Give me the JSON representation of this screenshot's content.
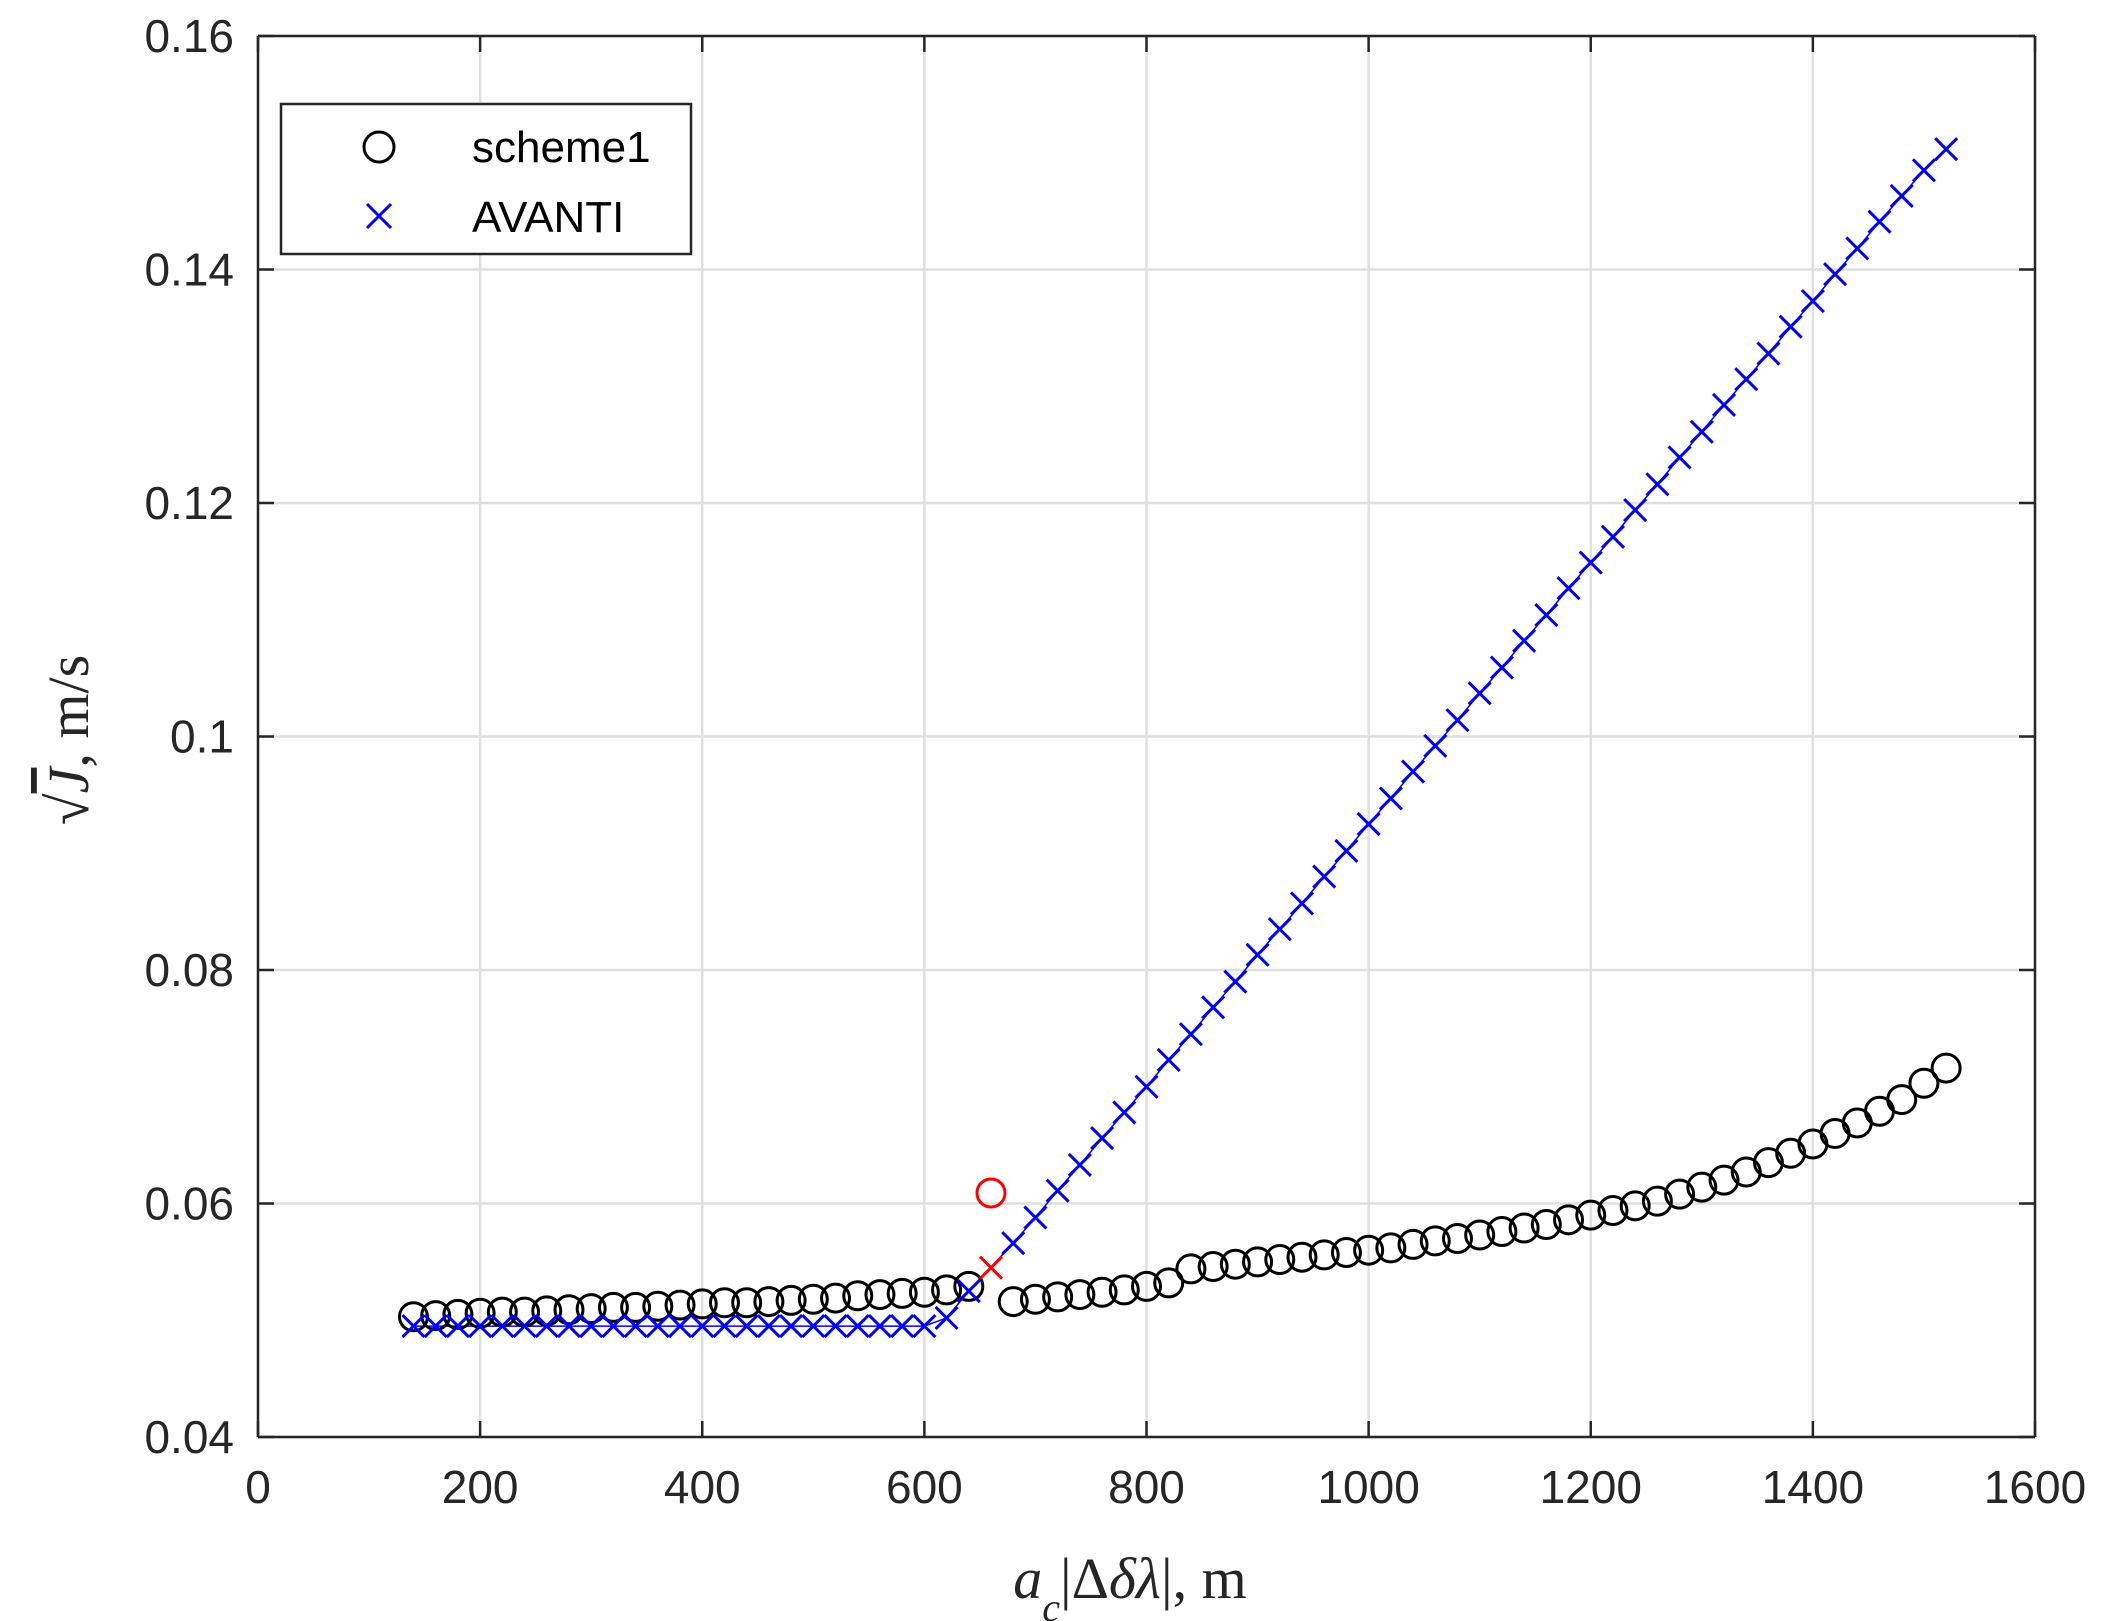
{
  "chart_data": {
    "type": "scatter",
    "title": "",
    "xlabel": "a_c|Δδλ|, m",
    "ylabel": "√J, m/s",
    "xlim": [
      0,
      1600
    ],
    "ylim": [
      0.04,
      0.16
    ],
    "grid": true,
    "legend_position": "top-left",
    "x_ticks": [
      0,
      200,
      400,
      600,
      800,
      1000,
      1200,
      1400,
      1600
    ],
    "x_tick_labels": [
      "0",
      "200",
      "400",
      "600",
      "800",
      "1000",
      "1200",
      "1400",
      "1600"
    ],
    "y_ticks": [
      0.04,
      0.06,
      0.08,
      0.1,
      0.12,
      0.14,
      0.16
    ],
    "y_tick_labels": [
      "0.04",
      "0.06",
      "0.08",
      "0.1",
      "0.12",
      "0.14",
      "0.16"
    ],
    "colors": {
      "scheme1": "#000000",
      "avanti": "#0000ff",
      "highlight": "#ff0000"
    },
    "series": [
      {
        "name": "scheme1",
        "marker": "circle",
        "color": "#000000",
        "x": [
          140,
          160,
          180,
          200,
          220,
          240,
          260,
          280,
          300,
          320,
          340,
          360,
          380,
          400,
          420,
          440,
          460,
          480,
          500,
          520,
          540,
          560,
          580,
          600,
          620,
          640,
          680,
          700,
          720,
          740,
          760,
          780,
          800,
          820,
          840,
          860,
          880,
          900,
          920,
          940,
          960,
          980,
          1000,
          1020,
          1040,
          1060,
          1080,
          1100,
          1120,
          1140,
          1160,
          1180,
          1200,
          1220,
          1240,
          1260,
          1280,
          1300,
          1320,
          1340,
          1360,
          1380,
          1400,
          1420,
          1440,
          1460,
          1480,
          1500,
          1520
        ],
        "y": [
          0.0503,
          0.0504,
          0.0505,
          0.0506,
          0.0507,
          0.0507,
          0.0508,
          0.0509,
          0.051,
          0.0511,
          0.0511,
          0.0512,
          0.0513,
          0.0514,
          0.0515,
          0.0515,
          0.0516,
          0.0517,
          0.0518,
          0.0519,
          0.0521,
          0.0522,
          0.0523,
          0.0524,
          0.0526,
          0.0529,
          0.0516,
          0.0518,
          0.052,
          0.0522,
          0.0524,
          0.0526,
          0.0529,
          0.0532,
          0.0544,
          0.0546,
          0.0548,
          0.055,
          0.0552,
          0.0554,
          0.0556,
          0.0558,
          0.056,
          0.0562,
          0.0565,
          0.0568,
          0.057,
          0.0573,
          0.0576,
          0.0579,
          0.0582,
          0.0586,
          0.059,
          0.0594,
          0.0598,
          0.0602,
          0.0608,
          0.0614,
          0.062,
          0.0627,
          0.0635,
          0.0643,
          0.0651,
          0.066,
          0.0669,
          0.0679,
          0.0689,
          0.0703,
          0.0716
        ]
      },
      {
        "name": "AVANTI",
        "marker": "x",
        "color": "#0000ff",
        "x": [
          140,
          160,
          180,
          200,
          220,
          240,
          260,
          280,
          300,
          320,
          340,
          360,
          380,
          400,
          420,
          440,
          460,
          480,
          500,
          520,
          540,
          560,
          580,
          600,
          620,
          640,
          680,
          700,
          720,
          740,
          760,
          780,
          800,
          820,
          840,
          860,
          880,
          900,
          920,
          940,
          960,
          980,
          1000,
          1020,
          1040,
          1060,
          1080,
          1100,
          1120,
          1140,
          1160,
          1180,
          1200,
          1220,
          1240,
          1260,
          1280,
          1300,
          1320,
          1340,
          1360,
          1380,
          1400,
          1420,
          1440,
          1460,
          1480,
          1500,
          1520
        ],
        "y": [
          0.0495,
          0.0495,
          0.0495,
          0.0495,
          0.0495,
          0.0495,
          0.0495,
          0.0495,
          0.0495,
          0.0495,
          0.0495,
          0.0495,
          0.0495,
          0.0495,
          0.0495,
          0.0495,
          0.0495,
          0.0495,
          0.0495,
          0.0495,
          0.0495,
          0.0495,
          0.0495,
          0.0495,
          0.0502,
          0.0525,
          0.0566,
          0.0588,
          0.0611,
          0.0633,
          0.0656,
          0.0678,
          0.07,
          0.0723,
          0.0745,
          0.0768,
          0.079,
          0.0813,
          0.0835,
          0.0857,
          0.088,
          0.0902,
          0.0925,
          0.0947,
          0.097,
          0.0992,
          0.1014,
          0.1037,
          0.1059,
          0.1082,
          0.1104,
          0.1127,
          0.1149,
          0.1171,
          0.1194,
          0.1216,
          0.1239,
          0.1261,
          0.1284,
          0.1306,
          0.1328,
          0.1351,
          0.1373,
          0.1396,
          0.1418,
          0.1441,
          0.1463,
          0.1485,
          0.1503
        ]
      }
    ],
    "highlight_points": [
      {
        "series": "scheme1",
        "marker": "circle",
        "color": "#ff0000",
        "x": 660,
        "y": 0.0609
      },
      {
        "series": "AVANTI",
        "marker": "x",
        "color": "#ff0000",
        "x": 660,
        "y": 0.0545
      }
    ],
    "legend": [
      {
        "label": "scheme1",
        "marker": "circle",
        "color": "#000000"
      },
      {
        "label": "AVANTI",
        "marker": "x",
        "color": "#0000ff"
      }
    ]
  }
}
